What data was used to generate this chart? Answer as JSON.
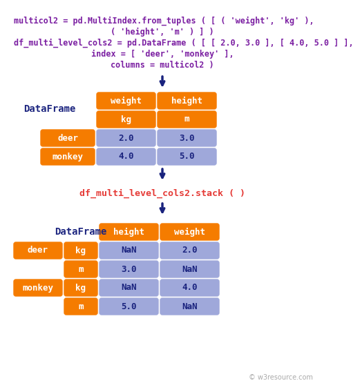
{
  "bg_color": "#ffffff",
  "orange": "#f57c00",
  "blue_light": "#9fa8da",
  "blue_dark": "#1a237e",
  "red_text": "#e53935",
  "purple_text": "#7b1fa2",
  "arrow_color": "#1a237e",
  "code_lines": [
    [
      "multicol2 = pd.MultiIndex.from_tuples ( [ ( 'weight', 'kg' ),",
      "left",
      10
    ],
    [
      "( 'height', 'm' ) ] )",
      "center",
      225
    ],
    [
      "df_multi_level_cols2 = pd.DataFrame ( [ [ 2.0, 3.0 ], [ 4.0, 5.0 ] ],",
      "left",
      10
    ],
    [
      "index = [ 'deer', 'monkey' ],",
      "center",
      225
    ],
    [
      "columns = multicol2 )",
      "center",
      225
    ]
  ],
  "middle_code": "df_multi_level_cols2.stack ( )",
  "watermark": "© w3resource.com",
  "table1_label": "DataFrame",
  "table1_hdr1": [
    "weight",
    "height"
  ],
  "table1_hdr2": [
    "kg",
    "m"
  ],
  "table1_rows": [
    [
      "deer",
      "2.0",
      "3.0"
    ],
    [
      "monkey",
      "4.0",
      "5.0"
    ]
  ],
  "table2_label": "DataFrame",
  "table2_hdr": [
    "height",
    "weight"
  ],
  "table2_col1": [
    "deer",
    "",
    "monkey",
    ""
  ],
  "table2_col2": [
    "kg",
    "m",
    "kg",
    "m"
  ],
  "table2_data": [
    [
      "NaN",
      "2.0"
    ],
    [
      "3.0",
      "NaN"
    ],
    [
      "NaN",
      "4.0"
    ],
    [
      "5.0",
      "NaN"
    ]
  ]
}
